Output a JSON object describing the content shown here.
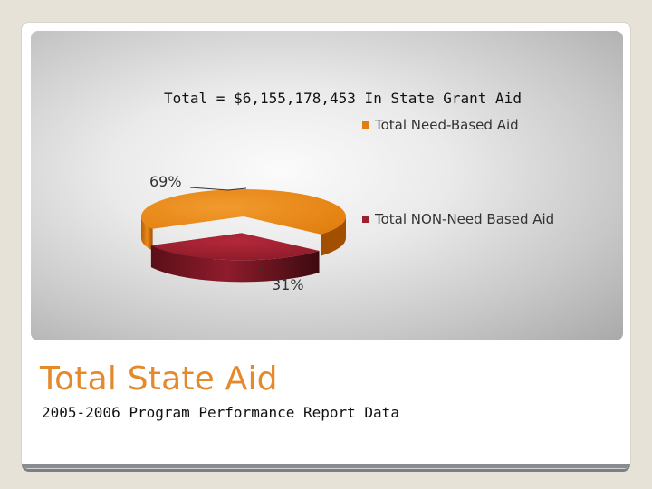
{
  "slide": {
    "title": "Total State Aid",
    "subtitle": "2005-2006 Program Performance Report Data"
  },
  "chart_data": {
    "type": "pie",
    "title": "Total = $6,155,178,453 In State Grant Aid",
    "categories": [
      "Total Need-Based Aid",
      "Total NON-Need Based Aid"
    ],
    "values": [
      69,
      31
    ],
    "data_labels": [
      "69%",
      "31%"
    ],
    "colors": [
      "#e07f10",
      "#9b2030"
    ],
    "legend_placement": "right",
    "three_d": true
  }
}
